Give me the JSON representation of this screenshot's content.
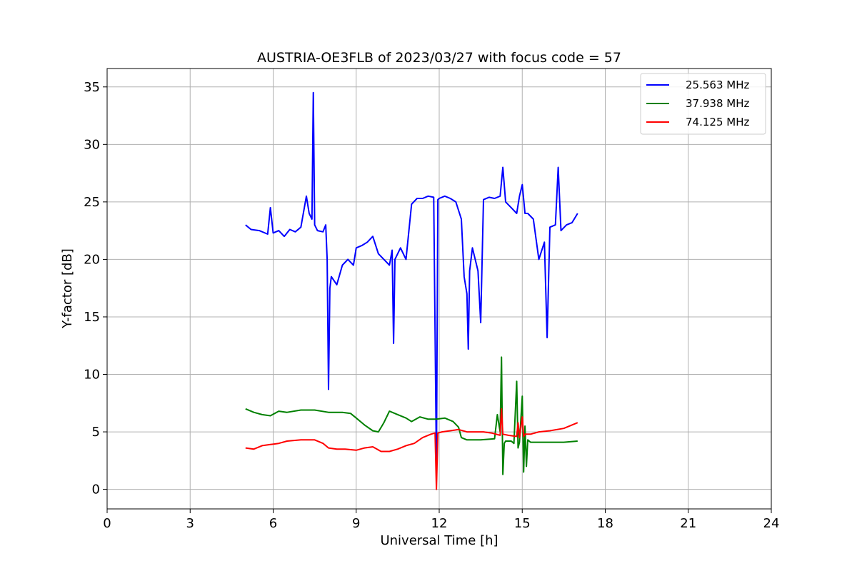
{
  "chart_data": {
    "type": "line",
    "title": "AUSTRIA-OE3FLB of 2023/03/27 with focus code = 57",
    "xlabel": "Universal Time [h]",
    "ylabel": "Y-factor [dB]",
    "xlim": [
      0,
      24
    ],
    "ylim": [
      -1.7,
      36.6
    ],
    "xticks": [
      "0",
      "3",
      "6",
      "9",
      "12",
      "15",
      "18",
      "21",
      "24"
    ],
    "yticks": [
      "0",
      "5",
      "10",
      "15",
      "20",
      "25",
      "30",
      "35"
    ],
    "grid": true,
    "legend_position": "top-right",
    "series": [
      {
        "name": "25.563 MHz",
        "color": "#0000ff",
        "x": [
          5.0,
          5.2,
          5.5,
          5.8,
          5.9,
          6.0,
          6.2,
          6.4,
          6.6,
          6.8,
          7.0,
          7.2,
          7.3,
          7.4,
          7.45,
          7.5,
          7.6,
          7.8,
          7.9,
          7.95,
          8.0,
          8.05,
          8.1,
          8.3,
          8.5,
          8.7,
          8.9,
          9.0,
          9.2,
          9.4,
          9.6,
          9.8,
          10.0,
          10.2,
          10.3,
          10.35,
          10.4,
          10.6,
          10.8,
          11.0,
          11.2,
          11.4,
          11.6,
          11.8,
          11.9,
          11.95,
          12.0,
          12.2,
          12.4,
          12.6,
          12.8,
          12.9,
          13.0,
          13.05,
          13.1,
          13.2,
          13.4,
          13.5,
          13.6,
          13.8,
          14.0,
          14.2,
          14.3,
          14.4,
          14.6,
          14.8,
          14.9,
          15.0,
          15.1,
          15.2,
          15.4,
          15.6,
          15.8,
          15.9,
          16.0,
          16.2,
          16.3,
          16.4,
          16.6,
          16.8,
          17.0
        ],
        "values": [
          23.0,
          22.6,
          22.5,
          22.2,
          24.5,
          22.3,
          22.5,
          22.0,
          22.6,
          22.4,
          22.8,
          25.5,
          24.0,
          23.5,
          34.5,
          23.0,
          22.5,
          22.4,
          23.0,
          20.0,
          8.7,
          17.5,
          18.5,
          17.8,
          19.5,
          20.0,
          19.5,
          21.0,
          21.2,
          21.5,
          22.0,
          20.5,
          20.0,
          19.5,
          20.8,
          12.7,
          20.0,
          21.0,
          20.0,
          24.8,
          25.3,
          25.3,
          25.5,
          25.4,
          2.0,
          25.2,
          25.3,
          25.5,
          25.3,
          25.0,
          23.5,
          18.5,
          17.0,
          12.2,
          19.0,
          21.0,
          19.0,
          14.5,
          25.2,
          25.4,
          25.3,
          25.5,
          28.0,
          25.0,
          24.5,
          24.0,
          25.5,
          26.5,
          24.0,
          24.0,
          23.5,
          20.0,
          21.5,
          13.2,
          22.8,
          23.0,
          28.0,
          22.5,
          23.0,
          23.2,
          24.0
        ]
      },
      {
        "name": "37.938 MHz",
        "color": "#008000",
        "x": [
          5.0,
          5.3,
          5.6,
          5.9,
          6.2,
          6.5,
          7.0,
          7.5,
          8.0,
          8.5,
          8.8,
          9.0,
          9.3,
          9.6,
          9.8,
          10.0,
          10.2,
          10.5,
          10.8,
          11.0,
          11.3,
          11.6,
          11.9,
          12.2,
          12.5,
          12.7,
          12.8,
          13.0,
          13.5,
          14.0,
          14.1,
          14.2,
          14.25,
          14.3,
          14.35,
          14.4,
          14.6,
          14.7,
          14.8,
          14.85,
          14.9,
          15.0,
          15.05,
          15.1,
          15.15,
          15.2,
          15.3,
          15.5,
          16.0,
          16.5,
          17.0
        ],
        "values": [
          7.0,
          6.7,
          6.5,
          6.4,
          6.8,
          6.7,
          6.9,
          6.9,
          6.7,
          6.7,
          6.6,
          6.2,
          5.6,
          5.1,
          5.0,
          5.8,
          6.8,
          6.5,
          6.2,
          5.9,
          6.3,
          6.1,
          6.1,
          6.2,
          5.9,
          5.4,
          4.5,
          4.3,
          4.3,
          4.4,
          6.5,
          5.0,
          11.5,
          1.3,
          4.0,
          4.2,
          4.2,
          4.0,
          9.4,
          3.6,
          4.1,
          8.1,
          1.5,
          5.5,
          2.0,
          4.3,
          4.1,
          4.1,
          4.1,
          4.1,
          4.2
        ]
      },
      {
        "name": "74.125 MHz",
        "color": "#ff0000",
        "x": [
          5.0,
          5.3,
          5.6,
          5.9,
          6.2,
          6.5,
          7.0,
          7.5,
          7.8,
          8.0,
          8.3,
          8.6,
          9.0,
          9.3,
          9.6,
          9.9,
          10.2,
          10.5,
          10.8,
          11.1,
          11.4,
          11.7,
          11.85,
          11.9,
          11.95,
          12.1,
          12.4,
          12.7,
          13.0,
          13.3,
          13.6,
          13.9,
          14.2,
          14.25,
          14.3,
          14.5,
          14.8,
          14.85,
          14.9,
          15.0,
          15.05,
          15.1,
          15.3,
          15.6,
          16.0,
          16.5,
          17.0
        ],
        "values": [
          3.6,
          3.5,
          3.8,
          3.9,
          4.0,
          4.2,
          4.3,
          4.3,
          4.0,
          3.6,
          3.5,
          3.5,
          3.4,
          3.6,
          3.7,
          3.3,
          3.3,
          3.5,
          3.8,
          4.0,
          4.5,
          4.8,
          4.9,
          0.0,
          4.9,
          5.0,
          5.1,
          5.2,
          5.0,
          5.0,
          5.0,
          4.9,
          4.7,
          7.0,
          4.8,
          4.7,
          4.6,
          5.8,
          4.5,
          6.3,
          4.6,
          4.8,
          4.8,
          5.0,
          5.1,
          5.3,
          5.8
        ]
      }
    ]
  }
}
